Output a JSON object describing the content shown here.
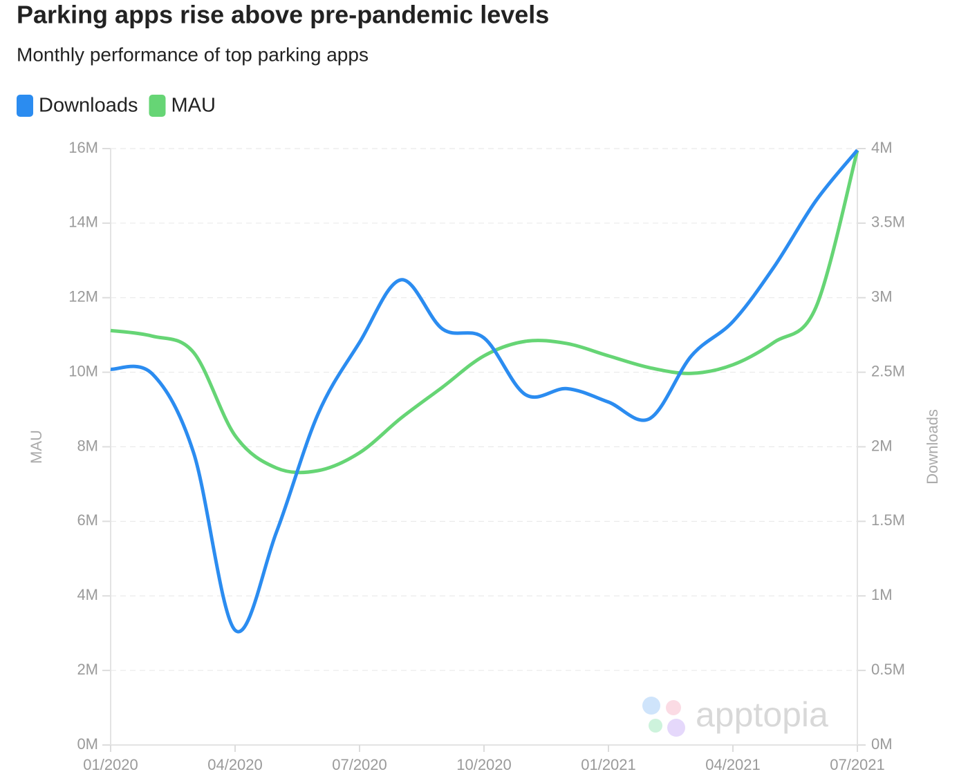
{
  "chart_data": {
    "type": "line",
    "title": "Parking apps rise above pre-pandemic levels",
    "subtitle": "Monthly performance of top parking apps",
    "categories": [
      "01/2020",
      null,
      null,
      "04/2020",
      null,
      null,
      "07/2020",
      null,
      null,
      "10/2020",
      null,
      null,
      "01/2021",
      null,
      null,
      "04/2021",
      null,
      null,
      "07/2021"
    ],
    "series": [
      {
        "name": "Downloads",
        "color": "#2b8cf0",
        "axis": "y2",
        "values": [
          2520000,
          2490000,
          1960000,
          770000,
          1430000,
          2220000,
          2700000,
          3120000,
          2790000,
          2730000,
          2350000,
          2390000,
          2300000,
          2190000,
          2610000,
          2840000,
          3210000,
          3650000,
          3990000
        ]
      },
      {
        "name": "MAU",
        "color": "#66d575",
        "axis": "y",
        "values": [
          11120000,
          10970000,
          10530000,
          8300000,
          7430000,
          7360000,
          7840000,
          8770000,
          9600000,
          10440000,
          10830000,
          10770000,
          10440000,
          10120000,
          9970000,
          10200000,
          10810000,
          11740000,
          15950000
        ]
      }
    ],
    "ylabel": "MAU",
    "y2label": "Downloads",
    "ylim": [
      0,
      16000000
    ],
    "yticks": [
      {
        "value": 0,
        "label": "0M"
      },
      {
        "value": 2000000,
        "label": "2M"
      },
      {
        "value": 4000000,
        "label": "4M"
      },
      {
        "value": 6000000,
        "label": "6M"
      },
      {
        "value": 8000000,
        "label": "8M"
      },
      {
        "value": 10000000,
        "label": "10M"
      },
      {
        "value": 12000000,
        "label": "12M"
      },
      {
        "value": 14000000,
        "label": "14M"
      },
      {
        "value": 16000000,
        "label": "16M"
      }
    ],
    "y2lim": [
      0,
      4000000
    ],
    "y2ticks": [
      {
        "value": 0,
        "label": "0M"
      },
      {
        "value": 500000,
        "label": "0.5M"
      },
      {
        "value": 1000000,
        "label": "1M"
      },
      {
        "value": 1500000,
        "label": "1.5M"
      },
      {
        "value": 2000000,
        "label": "2M"
      },
      {
        "value": 2500000,
        "label": "2.5M"
      },
      {
        "value": 3000000,
        "label": "3M"
      },
      {
        "value": 3500000,
        "label": "3.5M"
      },
      {
        "value": 4000000,
        "label": "4M"
      }
    ],
    "grid": true,
    "legend": "top-left",
    "watermark": "apptopia"
  }
}
